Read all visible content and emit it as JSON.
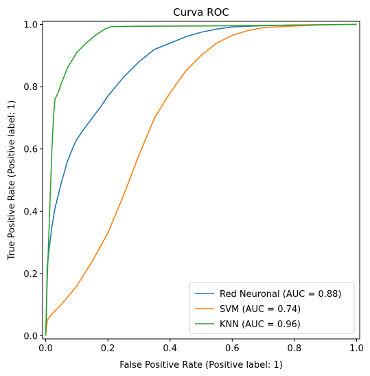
{
  "chart_data": {
    "type": "line",
    "title": "Curva ROC",
    "xlabel": "False Positive Rate (Positive label: 1)",
    "ylabel": "True Positive Rate (Positive label: 1)",
    "xlim": [
      -0.01,
      1.01
    ],
    "ylim": [
      -0.01,
      1.01
    ],
    "xticks": [
      0.0,
      0.2,
      0.4,
      0.6,
      0.8,
      1.0
    ],
    "yticks": [
      0.0,
      0.2,
      0.4,
      0.6,
      0.8,
      1.0
    ],
    "xtick_labels": [
      "0.0",
      "0.2",
      "0.4",
      "0.6",
      "0.8",
      "1.0"
    ],
    "ytick_labels": [
      "0.0",
      "0.2",
      "0.4",
      "0.6",
      "0.8",
      "1.0"
    ],
    "grid": false,
    "legend_position": "bottom-right",
    "series": [
      {
        "name": "Red Neuronal (AUC = 0.88)",
        "color": "#1f77b4",
        "x": [
          0.0,
          0.002,
          0.005,
          0.01,
          0.02,
          0.03,
          0.05,
          0.07,
          0.09,
          0.1,
          0.12,
          0.15,
          0.18,
          0.2,
          0.25,
          0.3,
          0.35,
          0.4,
          0.45,
          0.5,
          0.55,
          0.6,
          0.7,
          0.8,
          0.9,
          1.0
        ],
        "y": [
          0.0,
          0.05,
          0.22,
          0.27,
          0.35,
          0.41,
          0.49,
          0.56,
          0.61,
          0.63,
          0.66,
          0.7,
          0.74,
          0.77,
          0.83,
          0.88,
          0.92,
          0.94,
          0.96,
          0.975,
          0.985,
          0.992,
          0.996,
          0.998,
          0.999,
          1.0
        ]
      },
      {
        "name": "SVM (AUC = 0.74)",
        "color": "#ff7f0e",
        "x": [
          0.0,
          0.005,
          0.02,
          0.05,
          0.1,
          0.15,
          0.2,
          0.25,
          0.3,
          0.35,
          0.4,
          0.45,
          0.5,
          0.55,
          0.6,
          0.65,
          0.7,
          0.8,
          0.9,
          1.0
        ],
        "y": [
          0.0,
          0.05,
          0.07,
          0.1,
          0.16,
          0.24,
          0.33,
          0.45,
          0.58,
          0.7,
          0.78,
          0.85,
          0.9,
          0.94,
          0.965,
          0.98,
          0.99,
          0.995,
          0.999,
          1.0
        ]
      },
      {
        "name": "KNN (AUC = 0.96)",
        "color": "#2ca02c",
        "x": [
          0.0,
          0.005,
          0.01,
          0.02,
          0.025,
          0.03,
          0.04,
          0.05,
          0.07,
          0.1,
          0.13,
          0.16,
          0.19,
          0.21,
          0.3,
          0.5,
          0.7,
          1.0
        ],
        "y": [
          0.0,
          0.18,
          0.32,
          0.6,
          0.7,
          0.76,
          0.78,
          0.81,
          0.86,
          0.91,
          0.94,
          0.965,
          0.985,
          0.993,
          0.994,
          0.995,
          0.997,
          1.0
        ]
      }
    ]
  }
}
